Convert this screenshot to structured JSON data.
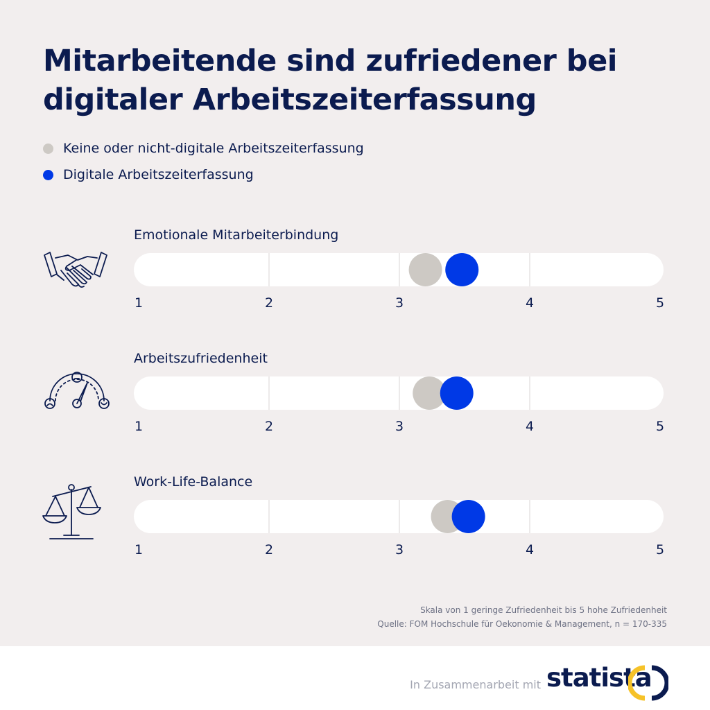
{
  "colors": {
    "navy": "#0b1b4f",
    "grey_dot": "#cdc9c4",
    "blue_dot": "#0039e6",
    "track": "#ffffff",
    "tick": "#e6e3e3",
    "logo_yellow": "#f6c228"
  },
  "chart_data": {
    "type": "scatter",
    "title": "Mitarbeitende sind zufriedener bei digitaler Arbeitszeiterfassung",
    "xlim": [
      1,
      5
    ],
    "ticks": [
      "1",
      "2",
      "3",
      "4",
      "5"
    ],
    "legend": [
      {
        "name": "Keine oder nicht-digitale Arbeitszeiterfassung",
        "color": "#cdc9c4"
      },
      {
        "name": "Digitale Arbeitszeiterfassung",
        "color": "#0039e6"
      }
    ],
    "categories": [
      {
        "label": "Emotionale Mitarbeiterbindung",
        "icon": "handshake-icon",
        "values": [
          3.2,
          3.48
        ]
      },
      {
        "label": "Arbeitszufriedenheit",
        "icon": "gauge-icon",
        "values": [
          3.23,
          3.44
        ]
      },
      {
        "label": "Work-Life-Balance",
        "icon": "scales-icon",
        "values": [
          3.37,
          3.53
        ]
      }
    ]
  },
  "notes": {
    "scale": "Skala von 1 geringe Zufriedenheit bis 5 hohe Zufriedenheit",
    "source": "Quelle: FOM Hochschule für Oekonomie & Management, n = 170-335"
  },
  "footer": {
    "collab": "In Zusammenarbeit mit",
    "brand": "statista"
  }
}
